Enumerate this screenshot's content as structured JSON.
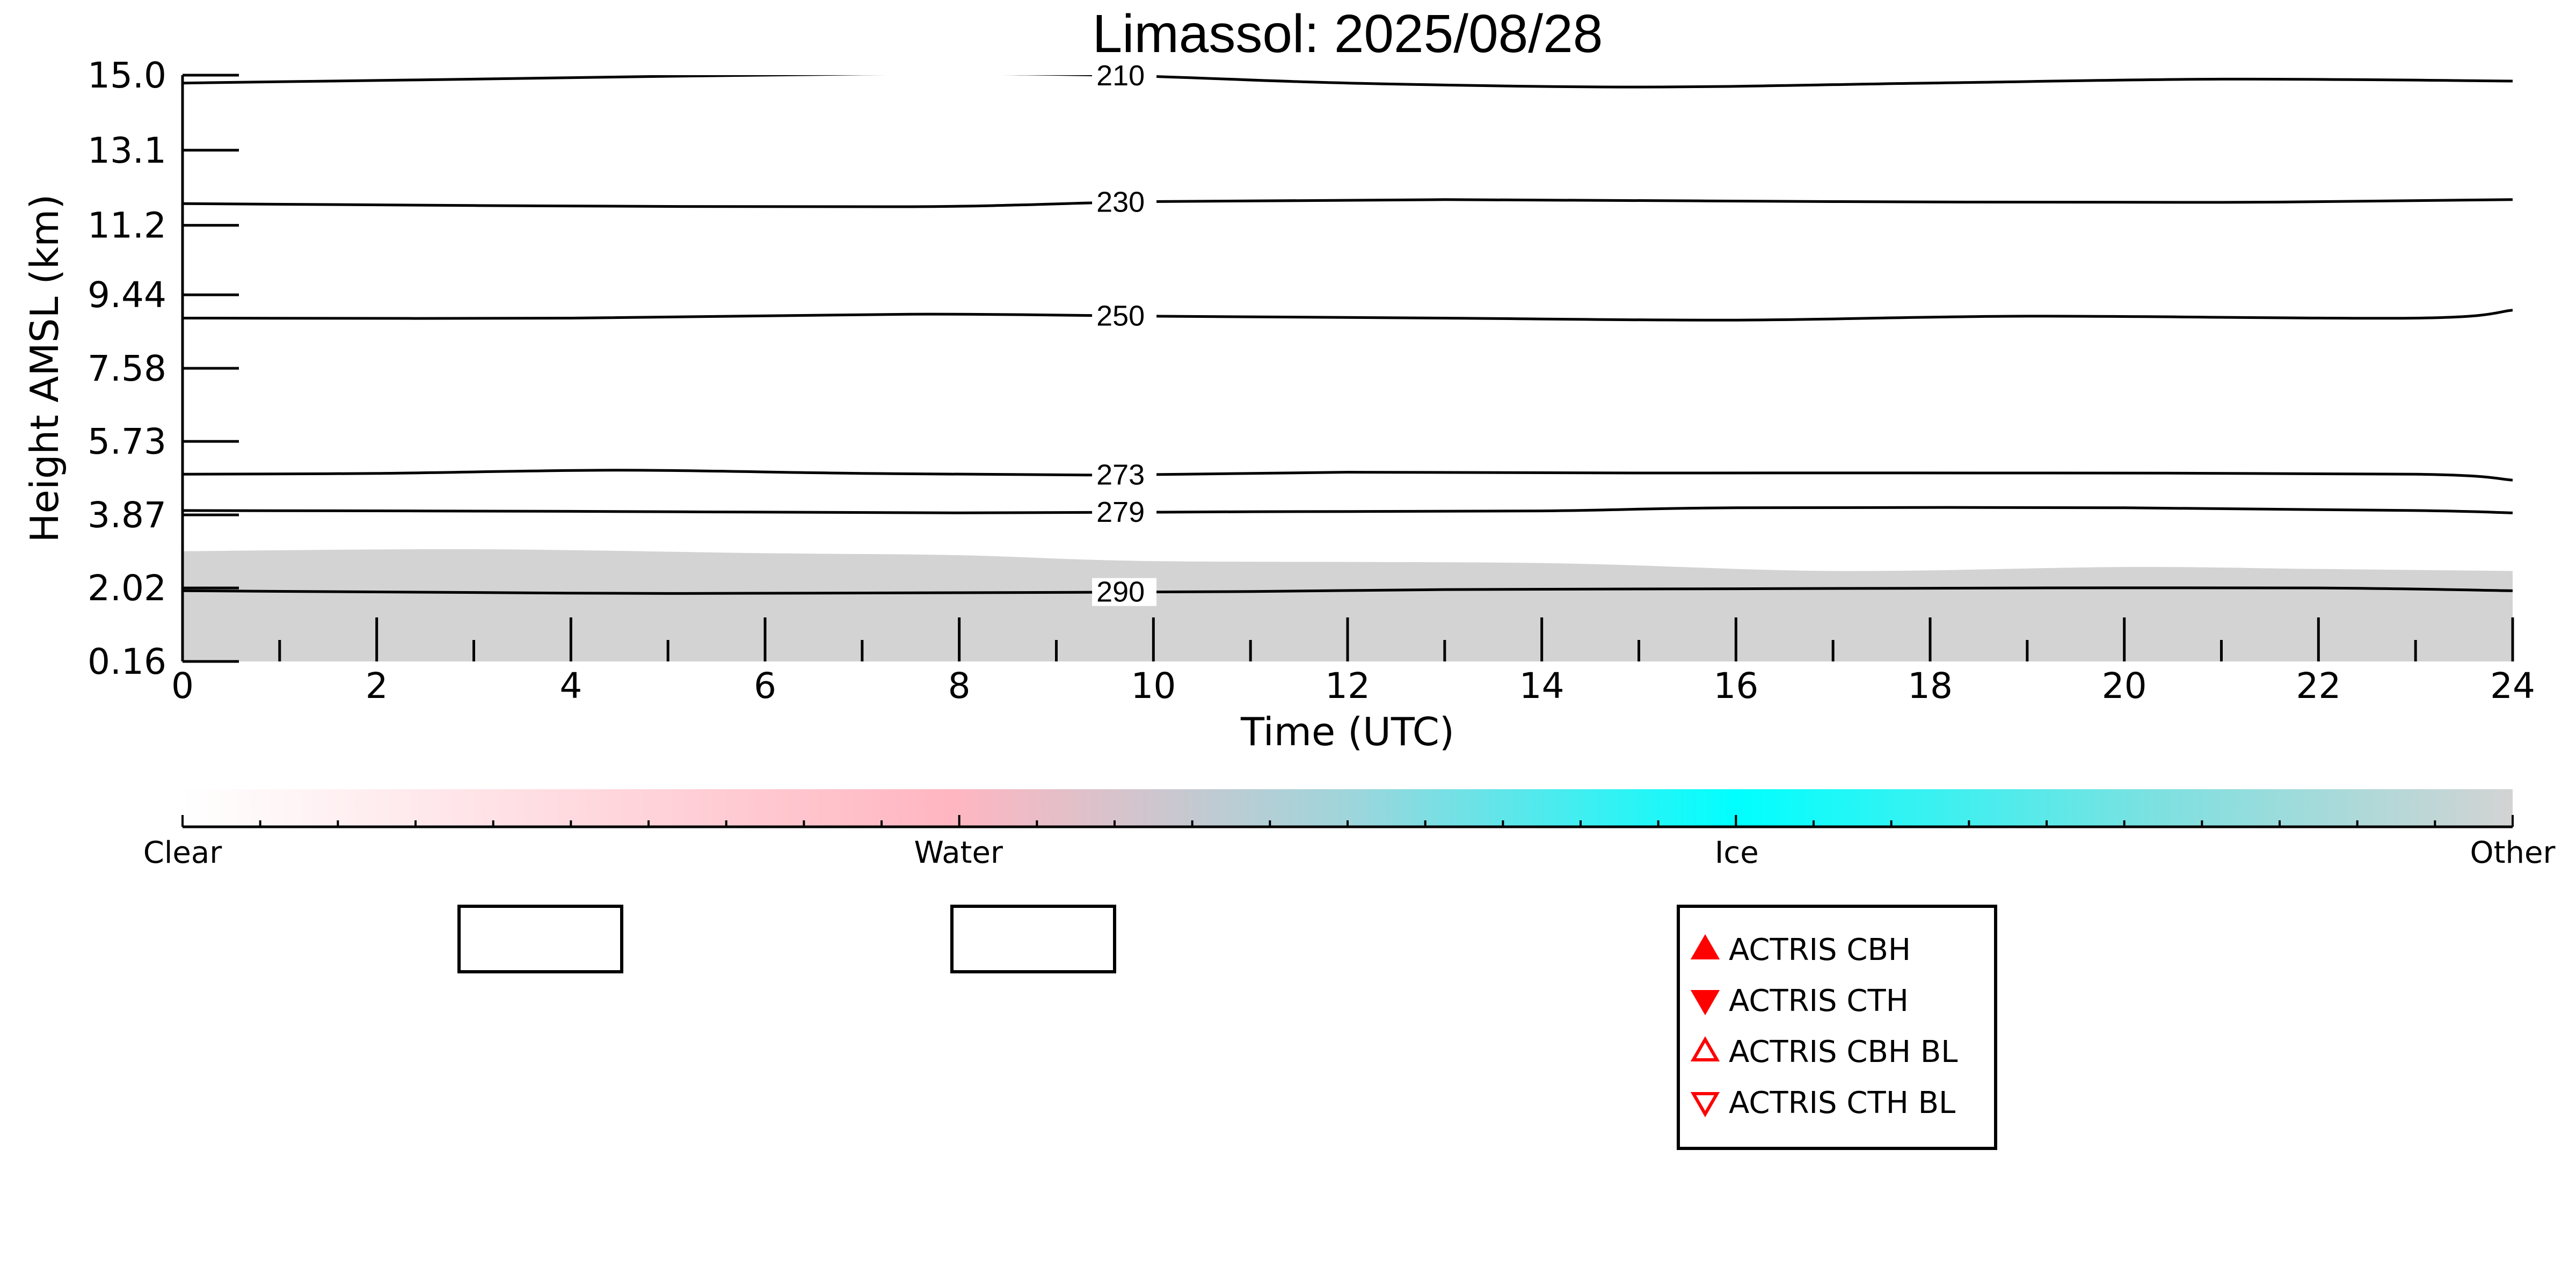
{
  "chart_data": {
    "type": "line",
    "title": "Limassol: 2025/08/28",
    "xlabel": "Time (UTC)",
    "ylabel": "Height AMSL (km)",
    "xlim": [
      0,
      24
    ],
    "ylim": [
      0.16,
      15.0
    ],
    "x_ticks": [
      "0",
      "2",
      "4",
      "6",
      "8",
      "10",
      "12",
      "14",
      "16",
      "18",
      "20",
      "22",
      "24"
    ],
    "y_ticks": [
      "15.0",
      "13.1",
      "11.2",
      "9.44",
      "7.58",
      "5.73",
      "3.87",
      "2.02",
      "0.16"
    ],
    "y_tick_values": [
      15.0,
      13.1,
      11.2,
      9.44,
      7.58,
      5.73,
      3.87,
      2.02,
      0.16
    ],
    "grid": false,
    "colors": {
      "background_echo": "#d3d3d3",
      "contour": "#000000",
      "legend_marker": "#ff0000"
    },
    "echo_top_km": {
      "x": [
        0,
        3,
        6,
        8,
        10,
        14,
        17,
        20,
        22,
        24
      ],
      "y": [
        2.95,
        3.0,
        2.9,
        2.85,
        2.7,
        2.65,
        2.45,
        2.55,
        2.5,
        2.45
      ]
    },
    "series": [
      {
        "name": "210",
        "x": [
          0,
          3,
          7,
          9.5,
          12,
          15,
          18,
          21,
          24
        ],
        "y": [
          14.8,
          14.9,
          15.03,
          15.0,
          14.8,
          14.7,
          14.8,
          14.9,
          14.85
        ]
      },
      {
        "name": "230",
        "x": [
          0,
          3,
          7.5,
          10,
          13,
          17,
          21,
          24
        ],
        "y": [
          11.75,
          11.7,
          11.67,
          11.8,
          11.85,
          11.8,
          11.78,
          11.85
        ]
      },
      {
        "name": "250",
        "x": [
          0,
          4,
          7.5,
          10,
          13,
          16,
          19,
          23,
          24
        ],
        "y": [
          8.85,
          8.85,
          8.95,
          8.9,
          8.85,
          8.8,
          8.9,
          8.85,
          9.05
        ]
      },
      {
        "name": "273",
        "x": [
          0,
          2,
          4.5,
          7,
          9.5,
          12,
          15,
          19,
          23,
          24
        ],
        "y": [
          4.9,
          4.92,
          5.0,
          4.92,
          4.88,
          4.95,
          4.93,
          4.93,
          4.9,
          4.75
        ]
      },
      {
        "name": "279",
        "x": [
          0,
          4,
          8,
          11,
          14,
          16,
          20,
          23,
          24
        ],
        "y": [
          3.98,
          3.96,
          3.92,
          3.95,
          3.97,
          4.05,
          4.05,
          3.98,
          3.92
        ]
      },
      {
        "name": "290",
        "x": [
          0,
          2,
          5,
          8,
          11,
          13,
          16,
          19,
          22,
          24
        ],
        "y": [
          1.95,
          1.92,
          1.88,
          1.9,
          1.93,
          1.98,
          2.0,
          2.02,
          2.02,
          1.95
        ]
      }
    ],
    "colorbar": {
      "labels": [
        "Clear",
        "Water",
        "Ice",
        "Other"
      ],
      "label_positions": [
        0,
        0.333,
        0.667,
        1.0
      ],
      "stops": [
        {
          "offset": 0.0,
          "color": "#ffffff"
        },
        {
          "offset": 0.33,
          "color": "#ffb6c1"
        },
        {
          "offset": 0.5,
          "color": "#9fd5db"
        },
        {
          "offset": 0.667,
          "color": "#00ffff"
        },
        {
          "offset": 0.85,
          "color": "#7fe0e0"
        },
        {
          "offset": 1.0,
          "color": "#d3d3d3"
        }
      ]
    },
    "legend": {
      "placement": "bottom-right",
      "entries": [
        {
          "label": "ACTRIS CBH",
          "marker": "triangle-up-filled"
        },
        {
          "label": "ACTRIS CTH",
          "marker": "triangle-down-filled"
        },
        {
          "label": "ACTRIS CBH BL",
          "marker": "triangle-up-open"
        },
        {
          "label": "ACTRIS CTH BL",
          "marker": "triangle-down-open"
        }
      ]
    }
  }
}
